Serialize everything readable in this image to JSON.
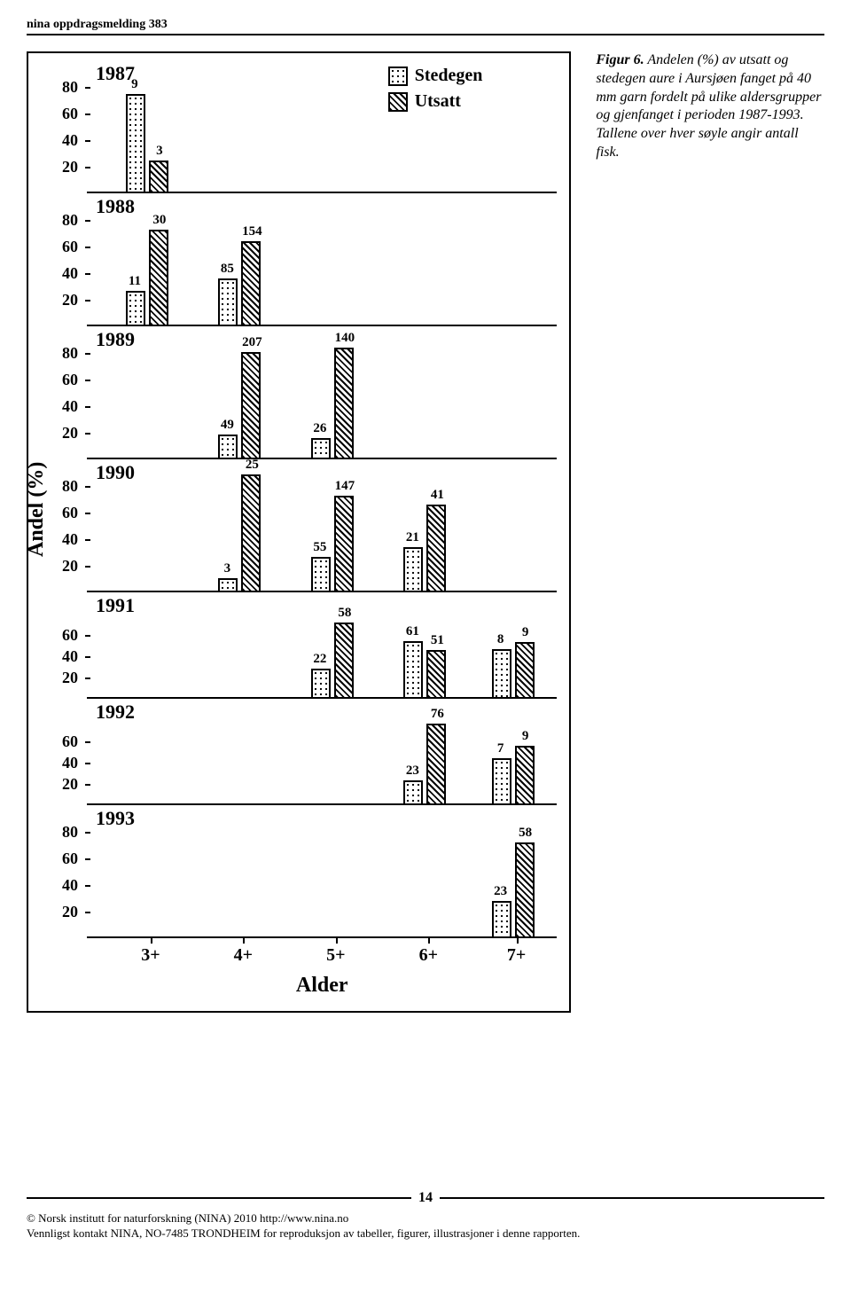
{
  "header": "nina oppdragsmelding 383",
  "figure_label": "Figur 6.",
  "caption_text": "Andelen (%) av utsatt og stedegen aure i Aursjøen fanget på 40 mm garn fordelt på ulike aldersgrupper og gjenfanget i perioden 1987-1993. Tallene over hver søyle angir antall fisk.",
  "y_axis_label": "Andel (%)",
  "x_axis_label": "Alder",
  "x_categories": [
    "3+",
    "4+",
    "5+",
    "6+",
    "7+"
  ],
  "x_positions_pct": [
    13,
    33,
    53,
    73,
    92
  ],
  "legend": {
    "stedegen": "Stedegen",
    "utsatt": "Utsatt"
  },
  "y_ticks": [
    20,
    40,
    60,
    80
  ],
  "panels": [
    {
      "year": "1987",
      "show80": true,
      "bars": [
        {
          "cat": 0,
          "sted_pct": 75,
          "sted_n": 9,
          "uts_pct": 25,
          "uts_n": 3
        }
      ]
    },
    {
      "year": "1988",
      "show80": true,
      "bars": [
        {
          "cat": 0,
          "sted_pct": 27,
          "sted_n": 11,
          "uts_pct": 73,
          "uts_n": 30
        },
        {
          "cat": 1,
          "sted_pct": 36,
          "sted_n": 85,
          "uts_pct": 64,
          "uts_n": 154
        }
      ]
    },
    {
      "year": "1989",
      "show80": true,
      "bars": [
        {
          "cat": 1,
          "sted_pct": 19,
          "sted_n": 49,
          "uts_pct": 81,
          "uts_n": 207
        },
        {
          "cat": 2,
          "sted_pct": 16,
          "sted_n": 26,
          "uts_pct": 84,
          "uts_n": 140
        }
      ]
    },
    {
      "year": "1990",
      "show80": true,
      "bars": [
        {
          "cat": 1,
          "sted_pct": 11,
          "sted_n": 3,
          "uts_pct": 89,
          "uts_n": 25
        },
        {
          "cat": 2,
          "sted_pct": 27,
          "sted_n": 55,
          "uts_pct": 73,
          "uts_n": 147
        },
        {
          "cat": 3,
          "sted_pct": 34,
          "sted_n": 21,
          "uts_pct": 66,
          "uts_n": 41
        }
      ]
    },
    {
      "year": "1991",
      "show80": false,
      "bars": [
        {
          "cat": 2,
          "sted_pct": 28,
          "sted_n": 22,
          "uts_pct": 72,
          "uts_n": 58
        },
        {
          "cat": 3,
          "sted_pct": 54,
          "sted_n": 61,
          "uts_pct": 46,
          "uts_n": 51
        },
        {
          "cat": 4,
          "sted_pct": 47,
          "sted_n": 8,
          "uts_pct": 53,
          "uts_n": 9
        }
      ]
    },
    {
      "year": "1992",
      "show80": false,
      "bars": [
        {
          "cat": 3,
          "sted_pct": 23,
          "sted_n": 23,
          "uts_pct": 77,
          "uts_n": 76
        },
        {
          "cat": 4,
          "sted_pct": 44,
          "sted_n": 7,
          "uts_pct": 56,
          "uts_n": 9
        }
      ]
    },
    {
      "year": "1993",
      "show80": true,
      "bars": [
        {
          "cat": 4,
          "sted_pct": 28,
          "sted_n": 23,
          "uts_pct": 72,
          "uts_n": 58
        }
      ]
    }
  ],
  "page_number": "14",
  "copyright_line1": "© Norsk institutt for naturforskning (NINA) 2010 http://www.nina.no",
  "copyright_line2": "Vennligst kontakt NINA, NO-7485 TRONDHEIM for reproduksjon av tabeller, figurer, illustrasjoner i denne rapporten."
}
